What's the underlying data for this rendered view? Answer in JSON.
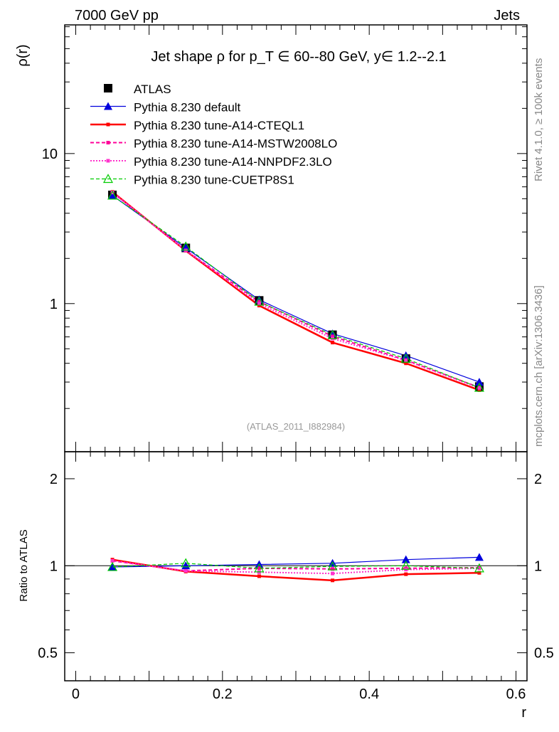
{
  "header": {
    "left": "7000 GeV pp",
    "right": "Jets"
  },
  "side": {
    "rivet": "Rivet 4.1.0, ≥ 100k events",
    "mcplots": "mcplots.cern.ch [arXiv:1306.3436]"
  },
  "chart_data": [
    {
      "type": "line",
      "title": "Jet shape ρ for p_T ∈ 60--80 GeV, y∈ 1.2--2.1",
      "ylabel": "ρ(r)",
      "xlabel": "r",
      "yscale": "log",
      "ylim": [
        0.103,
        72
      ],
      "xlim": [
        -0.015,
        0.615
      ],
      "yticks": [
        {
          "v": 10,
          "label": "10"
        },
        {
          "v": 1,
          "label": "1"
        }
      ],
      "watermark": "(ATLAS_2011_I882984)",
      "x": [
        0.05,
        0.15,
        0.25,
        0.35,
        0.45,
        0.55
      ],
      "series": [
        {
          "name": "ATLAS",
          "color": "#000000",
          "values": [
            5.3,
            2.35,
            1.05,
            0.62,
            0.43,
            0.28
          ]
        },
        {
          "name": "Pythia 8.230 default",
          "color": "#0000dd",
          "values": [
            5.25,
            2.35,
            1.06,
            0.63,
            0.45,
            0.3
          ]
        },
        {
          "name": "Pythia 8.230 tune-A14-CTEQL1",
          "color": "#ff0000",
          "values": [
            5.55,
            2.25,
            0.97,
            0.55,
            0.4,
            0.265
          ]
        },
        {
          "name": "Pythia 8.230 tune-A14-MSTW2008LO",
          "color": "#ff0099",
          "values": [
            5.5,
            2.26,
            1.03,
            0.605,
            0.42,
            0.276
          ]
        },
        {
          "name": "Pythia 8.230 tune-A14-NNPDF2.3LO",
          "color": "#ff33cc",
          "values": [
            5.5,
            2.26,
            1.0,
            0.585,
            0.417,
            0.274
          ]
        },
        {
          "name": "Pythia 8.230 tune-CUETP8S1",
          "color": "#00cc00",
          "values": [
            5.25,
            2.4,
            1.03,
            0.617,
            0.43,
            0.275
          ]
        }
      ]
    },
    {
      "type": "line",
      "ylabel": "Ratio to ATLAS",
      "xlabel": "r",
      "yscale": "log",
      "ylim": [
        0.4,
        2.48
      ],
      "yticks": [
        {
          "v": 2,
          "label": "2"
        },
        {
          "v": 1,
          "label": "1"
        },
        {
          "v": 0.5,
          "label": "0.5"
        }
      ],
      "xticks": [
        {
          "v": 0,
          "label": "0"
        },
        {
          "v": 0.2,
          "label": "0.2"
        },
        {
          "v": 0.4,
          "label": "0.4"
        },
        {
          "v": 0.6,
          "label": "0.6"
        }
      ],
      "x": [
        0.05,
        0.15,
        0.25,
        0.35,
        0.45,
        0.55
      ],
      "series": [
        {
          "name": "Pythia 8.230 default",
          "values": [
            0.99,
            1.0,
            1.01,
            1.02,
            1.05,
            1.07
          ]
        },
        {
          "name": "Pythia 8.230 tune-A14-CTEQL1",
          "values": [
            1.05,
            0.955,
            0.92,
            0.89,
            0.935,
            0.945
          ]
        },
        {
          "name": "Pythia 8.230 tune-A14-MSTW2008LO",
          "values": [
            1.04,
            0.96,
            0.98,
            0.975,
            0.98,
            0.985
          ]
        },
        {
          "name": "Pythia 8.230 tune-A14-NNPDF2.3LO",
          "values": [
            1.04,
            0.96,
            0.95,
            0.94,
            0.97,
            0.98
          ]
        },
        {
          "name": "Pythia 8.230 tune-CUETP8S1",
          "values": [
            0.99,
            1.02,
            0.98,
            0.995,
            1.0,
            0.98
          ]
        }
      ]
    }
  ]
}
